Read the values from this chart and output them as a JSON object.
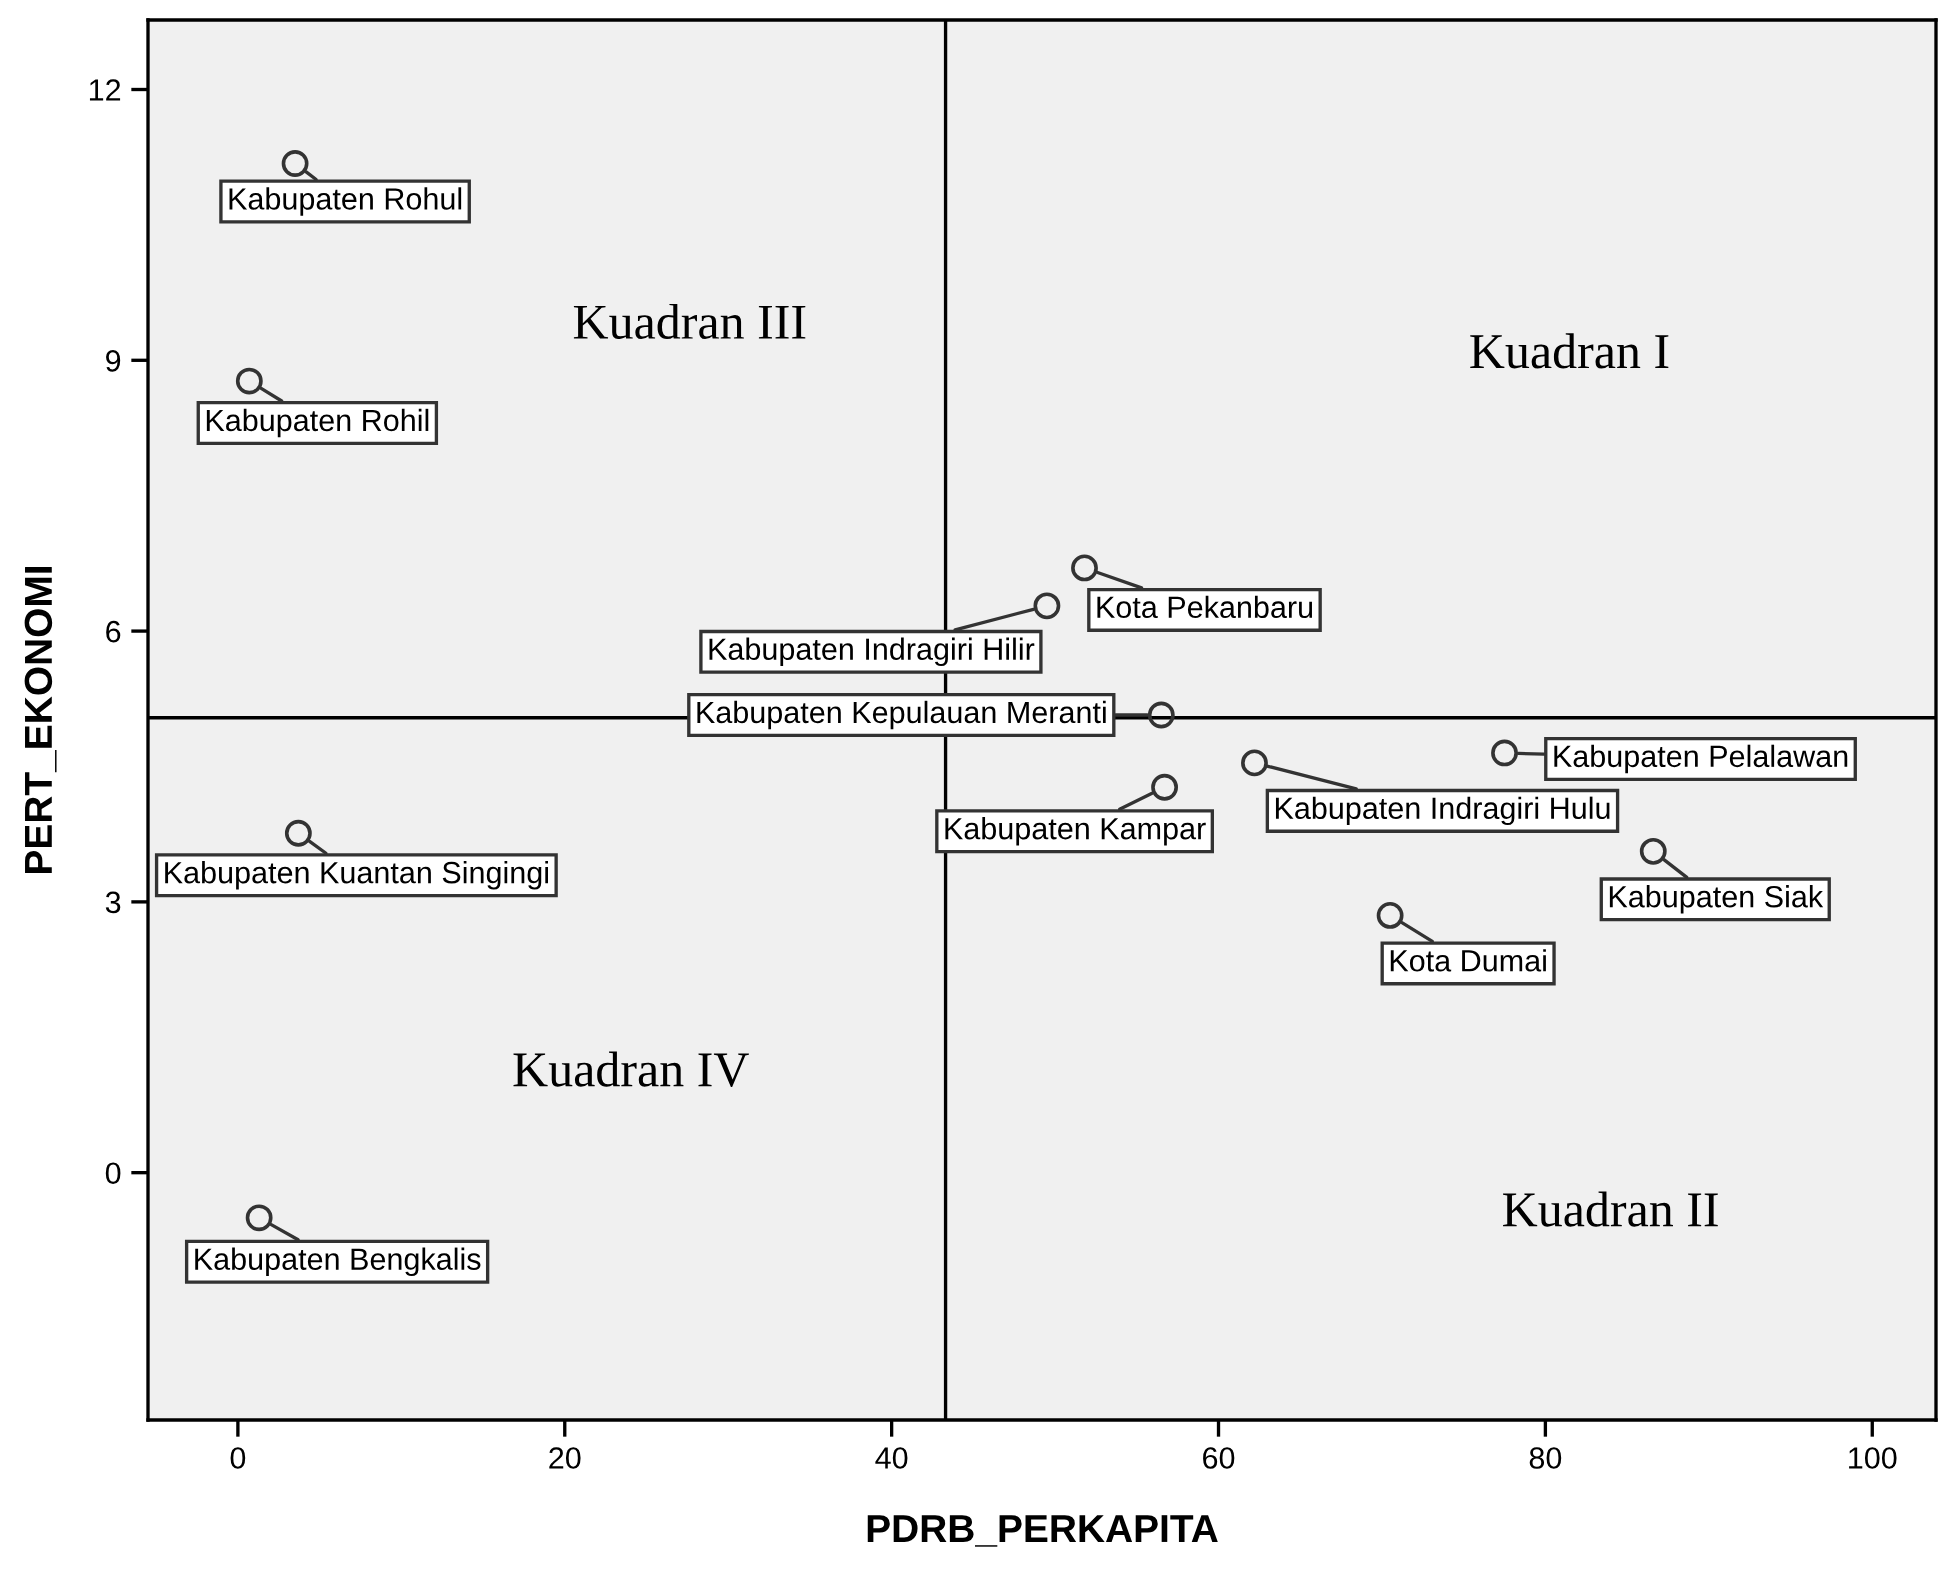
{
  "chart_data": {
    "type": "scatter",
    "xlabel": "PDRB_PERKAPITA",
    "ylabel": "PERT_EKONOMI",
    "xlim": [
      -5.5,
      103.9
    ],
    "ylim": [
      -2.74,
      12.77
    ],
    "xticks": [
      0,
      20,
      40,
      60,
      80,
      100
    ],
    "yticks": [
      0,
      3,
      6,
      9,
      12
    ],
    "grid": false,
    "legend": false,
    "marker": "circle",
    "series": [
      {
        "color": "#333333",
        "x": [
          3.5,
          0.7,
          3.7,
          1.3,
          49.5,
          51.8,
          56.5,
          56.7,
          62.2,
          77.5,
          86.6,
          70.5
        ],
        "values": [
          11.18,
          8.77,
          3.76,
          -0.5,
          6.28,
          6.7,
          5.07,
          4.27,
          4.54,
          4.65,
          3.56,
          2.85
        ],
        "value_labels": [
          "Kabupaten Rohul",
          "Kabupaten Rohil",
          "Kabupaten Kuantan Singingi",
          "Kabupaten Bengkalis",
          "Kabupaten Indragiri Hilir",
          "Kota Pekanbaru",
          "Kabupaten Kepulauan Meranti",
          "Kabupaten Kampar",
          "Kabupaten Indragiri Hulu",
          "Kabupaten Pelalawan",
          "Kabupaten Siak",
          "Kota Dumai"
        ]
      }
    ],
    "ref_lines": [
      {
        "axis": "x",
        "value": 43.3,
        "color": "#000000"
      },
      {
        "axis": "y",
        "value": 5.04,
        "color": "#000000"
      }
    ],
    "annotations": [
      "Kuadran III",
      "Kuadran I",
      "Kuadran IV",
      "Kuadran II"
    ]
  }
}
